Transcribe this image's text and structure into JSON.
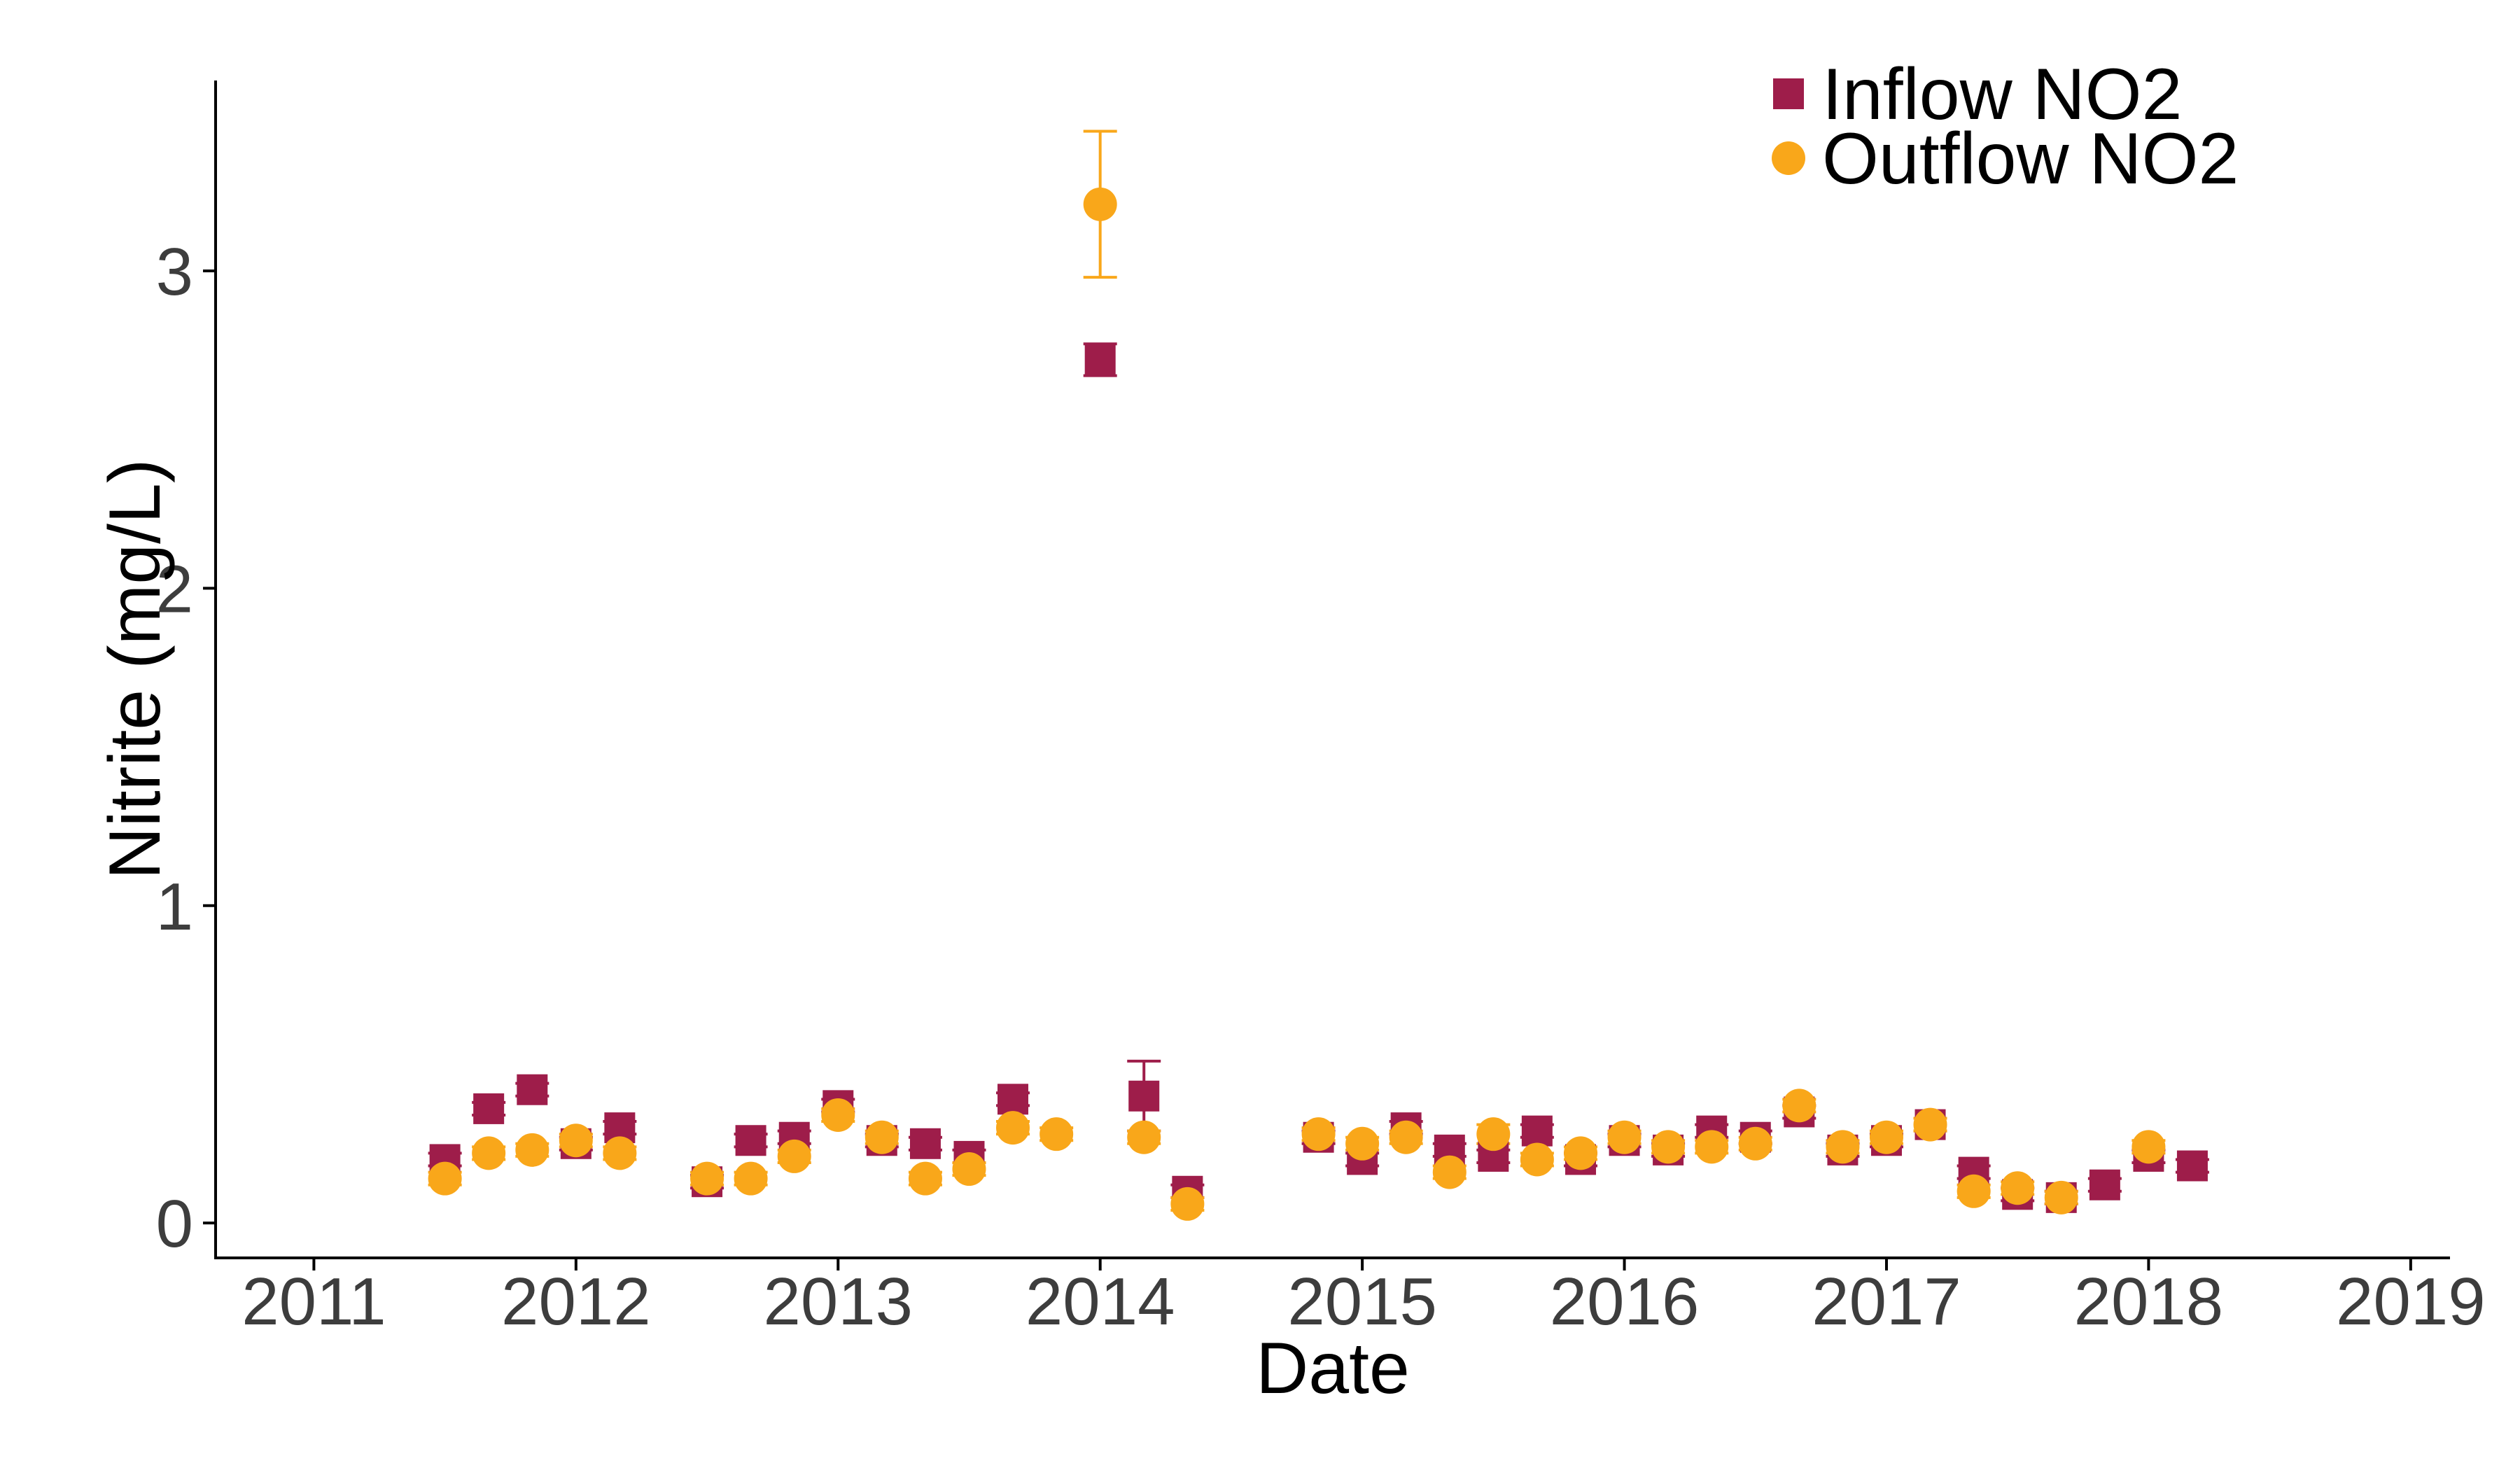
{
  "chart_data": {
    "type": "scatter",
    "xlabel": "Date",
    "ylabel": "Nitrite (mg/L)",
    "xlim": [
      2010.625,
      2019.15
    ],
    "ylim": [
      -0.11,
      3.6
    ],
    "x_ticks": [
      {
        "value": 2011,
        "label": "2011"
      },
      {
        "value": 2012,
        "label": "2012"
      },
      {
        "value": 2013,
        "label": "2013"
      },
      {
        "value": 2014,
        "label": "2014"
      },
      {
        "value": 2015,
        "label": "2015"
      },
      {
        "value": 2016,
        "label": "2016"
      },
      {
        "value": 2017,
        "label": "2017"
      },
      {
        "value": 2018,
        "label": "2018"
      },
      {
        "value": 2019,
        "label": "2019"
      }
    ],
    "y_ticks": [
      {
        "value": 0,
        "label": "0"
      },
      {
        "value": 1,
        "label": "1"
      },
      {
        "value": 2,
        "label": "2"
      },
      {
        "value": 3,
        "label": "3"
      }
    ],
    "grid": false,
    "legend_position": "top-right",
    "series": [
      {
        "name": "Inflow NO2",
        "color": "#9e1d4a",
        "marker": "square",
        "points": [
          {
            "x": 2011.5,
            "y": 0.2,
            "err": 0.02
          },
          {
            "x": 2011.667,
            "y": 0.36,
            "err": 0.02
          },
          {
            "x": 2011.833,
            "y": 0.42,
            "err": 0.02
          },
          {
            "x": 2012.0,
            "y": 0.25,
            "err": 0.02
          },
          {
            "x": 2012.167,
            "y": 0.3,
            "err": 0.02
          },
          {
            "x": 2012.5,
            "y": 0.13,
            "err": 0.02
          },
          {
            "x": 2012.667,
            "y": 0.26,
            "err": 0.02
          },
          {
            "x": 2012.833,
            "y": 0.27,
            "err": 0.02
          },
          {
            "x": 2013.0,
            "y": 0.37,
            "err": 0.02
          },
          {
            "x": 2013.167,
            "y": 0.26,
            "err": 0.02
          },
          {
            "x": 2013.333,
            "y": 0.25,
            "err": 0.02
          },
          {
            "x": 2013.5,
            "y": 0.21,
            "err": 0.02
          },
          {
            "x": 2013.667,
            "y": 0.39,
            "err": 0.02
          },
          {
            "x": 2014.0,
            "y": 2.72,
            "err": 0.05
          },
          {
            "x": 2014.167,
            "y": 0.4,
            "err": 0.11
          },
          {
            "x": 2014.333,
            "y": 0.1,
            "err": 0.02
          },
          {
            "x": 2014.833,
            "y": 0.27,
            "err": 0.02
          },
          {
            "x": 2015.0,
            "y": 0.2,
            "err": 0.02
          },
          {
            "x": 2015.167,
            "y": 0.3,
            "err": 0.02
          },
          {
            "x": 2015.333,
            "y": 0.23,
            "err": 0.02
          },
          {
            "x": 2015.5,
            "y": 0.21,
            "err": 0.02
          },
          {
            "x": 2015.667,
            "y": 0.29,
            "err": 0.02
          },
          {
            "x": 2015.833,
            "y": 0.2,
            "err": 0.02
          },
          {
            "x": 2016.0,
            "y": 0.26,
            "err": 0.02
          },
          {
            "x": 2016.167,
            "y": 0.23,
            "err": 0.02
          },
          {
            "x": 2016.333,
            "y": 0.29,
            "err": 0.02
          },
          {
            "x": 2016.5,
            "y": 0.27,
            "err": 0.02
          },
          {
            "x": 2016.667,
            "y": 0.35,
            "err": 0.02
          },
          {
            "x": 2016.833,
            "y": 0.23,
            "err": 0.02
          },
          {
            "x": 2017.0,
            "y": 0.26,
            "err": 0.02
          },
          {
            "x": 2017.167,
            "y": 0.31,
            "err": 0.02
          },
          {
            "x": 2017.333,
            "y": 0.16,
            "err": 0.02
          },
          {
            "x": 2017.5,
            "y": 0.09,
            "err": 0.02
          },
          {
            "x": 2017.667,
            "y": 0.08,
            "err": 0.02
          },
          {
            "x": 2017.833,
            "y": 0.12,
            "err": 0.02
          },
          {
            "x": 2018.0,
            "y": 0.21,
            "err": 0.02
          },
          {
            "x": 2018.167,
            "y": 0.18,
            "err": 0.02
          }
        ]
      },
      {
        "name": "Outflow NO2",
        "color": "#f9a71a",
        "marker": "circle",
        "points": [
          {
            "x": 2011.5,
            "y": 0.14,
            "err": 0.02
          },
          {
            "x": 2011.667,
            "y": 0.22,
            "err": 0.02
          },
          {
            "x": 2011.833,
            "y": 0.23,
            "err": 0.02
          },
          {
            "x": 2012.0,
            "y": 0.26,
            "err": 0.02
          },
          {
            "x": 2012.167,
            "y": 0.22,
            "err": 0.02
          },
          {
            "x": 2012.5,
            "y": 0.14,
            "err": 0.02
          },
          {
            "x": 2012.667,
            "y": 0.14,
            "err": 0.02
          },
          {
            "x": 2012.833,
            "y": 0.21,
            "err": 0.02
          },
          {
            "x": 2013.0,
            "y": 0.34,
            "err": 0.02
          },
          {
            "x": 2013.167,
            "y": 0.27,
            "err": 0.02
          },
          {
            "x": 2013.333,
            "y": 0.14,
            "err": 0.02
          },
          {
            "x": 2013.5,
            "y": 0.17,
            "err": 0.02
          },
          {
            "x": 2013.667,
            "y": 0.3,
            "err": 0.02
          },
          {
            "x": 2013.833,
            "y": 0.28,
            "err": 0.02
          },
          {
            "x": 2014.0,
            "y": 3.21,
            "err": 0.23
          },
          {
            "x": 2014.167,
            "y": 0.27,
            "err": 0.02
          },
          {
            "x": 2014.333,
            "y": 0.06,
            "err": 0.02
          },
          {
            "x": 2014.833,
            "y": 0.28,
            "err": 0.02
          },
          {
            "x": 2015.0,
            "y": 0.25,
            "err": 0.02
          },
          {
            "x": 2015.167,
            "y": 0.27,
            "err": 0.02
          },
          {
            "x": 2015.333,
            "y": 0.16,
            "err": 0.02
          },
          {
            "x": 2015.5,
            "y": 0.28,
            "err": 0.03
          },
          {
            "x": 2015.667,
            "y": 0.2,
            "err": 0.02
          },
          {
            "x": 2015.833,
            "y": 0.22,
            "err": 0.02
          },
          {
            "x": 2016.0,
            "y": 0.27,
            "err": 0.02
          },
          {
            "x": 2016.167,
            "y": 0.24,
            "err": 0.02
          },
          {
            "x": 2016.333,
            "y": 0.24,
            "err": 0.02
          },
          {
            "x": 2016.5,
            "y": 0.25,
            "err": 0.02
          },
          {
            "x": 2016.667,
            "y": 0.37,
            "err": 0.02
          },
          {
            "x": 2016.833,
            "y": 0.24,
            "err": 0.02
          },
          {
            "x": 2017.0,
            "y": 0.27,
            "err": 0.02
          },
          {
            "x": 2017.167,
            "y": 0.31,
            "err": 0.02
          },
          {
            "x": 2017.333,
            "y": 0.1,
            "err": 0.02
          },
          {
            "x": 2017.5,
            "y": 0.11,
            "err": 0.02
          },
          {
            "x": 2017.667,
            "y": 0.08,
            "err": 0.02
          },
          {
            "x": 2018.0,
            "y": 0.24,
            "err": 0.02
          }
        ]
      }
    ]
  }
}
